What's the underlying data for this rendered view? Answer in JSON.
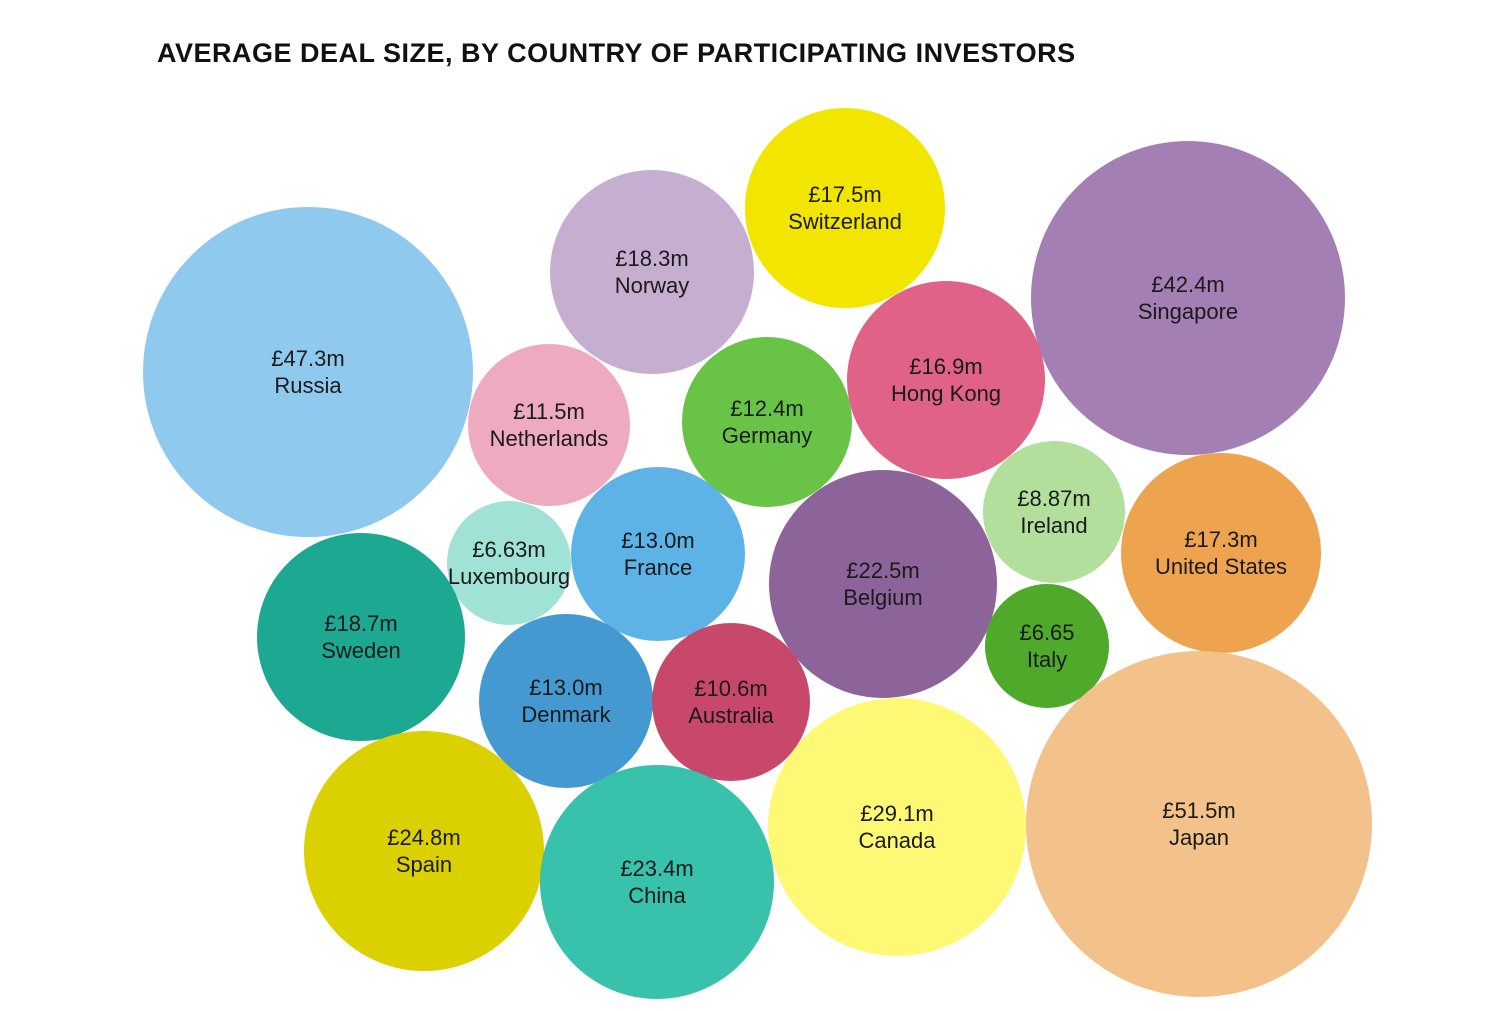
{
  "chart_data": {
    "type": "bubble",
    "title": "AVERAGE DEAL SIZE, BY COUNTRY OF PARTICIPATING INVESTORS",
    "unit": "£m",
    "items": [
      {
        "country": "Russia",
        "label": "£47.3m",
        "value": 47.3,
        "color": "#8fcaee"
      },
      {
        "country": "Norway",
        "label": "£18.3m",
        "value": 18.3,
        "color": "#c6aed1"
      },
      {
        "country": "Switzerland",
        "label": "£17.5m",
        "value": 17.5,
        "color": "#f2e600"
      },
      {
        "country": "Singapore",
        "label": "£42.4m",
        "value": 42.4,
        "color": "#a47fb4"
      },
      {
        "country": "Netherlands",
        "label": "£11.5m",
        "value": 11.5,
        "color": "#eeaabe"
      },
      {
        "country": "Germany",
        "label": "£12.4m",
        "value": 12.4,
        "color": "#68c346"
      },
      {
        "country": "Hong Kong",
        "label": "£16.9m",
        "value": 16.9,
        "color": "#e06286"
      },
      {
        "country": "Ireland",
        "label": "£8.87m",
        "value": 8.87,
        "color": "#b2e09c"
      },
      {
        "country": "Luxembourg",
        "label": "£6.63m",
        "value": 6.63,
        "color": "#a1e2d6"
      },
      {
        "country": "France",
        "label": "£13.0m",
        "value": 13.0,
        "color": "#5db3e6"
      },
      {
        "country": "Belgium",
        "label": "£22.5m",
        "value": 22.5,
        "color": "#8c6499"
      },
      {
        "country": "United States",
        "label": "£17.3m",
        "value": 17.3,
        "color": "#eea44f"
      },
      {
        "country": "Sweden",
        "label": "£18.7m",
        "value": 18.7,
        "color": "#1da892"
      },
      {
        "country": "Italy",
        "label": "£6.65",
        "value": 6.65,
        "color": "#4fa92a"
      },
      {
        "country": "Denmark",
        "label": "£13.0m",
        "value": 13.0,
        "color": "#4499d0"
      },
      {
        "country": "Australia",
        "label": "£10.6m",
        "value": 10.6,
        "color": "#c8486b"
      },
      {
        "country": "Spain",
        "label": "£24.8m",
        "value": 24.8,
        "color": "#dbd000"
      },
      {
        "country": "China",
        "label": "£23.4m",
        "value": 23.4,
        "color": "#38c2ac"
      },
      {
        "country": "Canada",
        "label": "£29.1m",
        "value": 29.1,
        "color": "#fef975"
      },
      {
        "country": "Japan",
        "label": "£51.5m",
        "value": 51.5,
        "color": "#f2c28a"
      }
    ]
  }
}
